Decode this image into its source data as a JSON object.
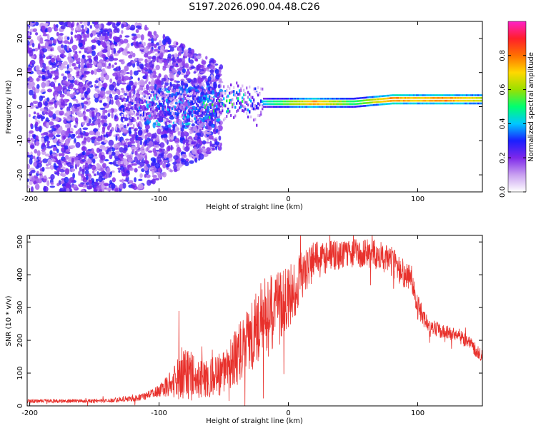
{
  "title": "S197.2026.090.04.48.C26",
  "colors": {
    "snr_line": "#e8312c",
    "colormap": [
      "#ffffff",
      "#c9a0f0",
      "#7e28ea",
      "#1a1fff",
      "#00c8ff",
      "#00ff70",
      "#9ae000",
      "#ffd800",
      "#ff7000",
      "#ff1f2a",
      "#ff20c8"
    ]
  },
  "chart_data": [
    {
      "type": "heatmap",
      "title": "S197.2026.090.04.48.C26",
      "xlabel": "Height of straight line (km)",
      "ylabel": "Frequency (Hz)",
      "xlim": [
        -202,
        150
      ],
      "ylim": [
        -25,
        25
      ],
      "xticks": [
        -200,
        -100,
        0,
        100
      ],
      "xtick_labels": [
        "-200",
        "-100",
        "0",
        "100"
      ],
      "yticks": [
        -20,
        -10,
        0,
        10,
        20
      ],
      "ytick_labels": [
        "-20",
        "-10",
        "0",
        "10",
        "20"
      ],
      "colorbar": {
        "label": "Normalized spectral amplitude",
        "range": [
          0,
          1
        ],
        "ticks": [
          0.0,
          0.2,
          0.4,
          0.6,
          0.8
        ],
        "tick_labels": [
          "0.0",
          "0.2",
          "0.4",
          "0.6",
          "0.8"
        ]
      },
      "description_points": {
        "x": [
          -200,
          -150,
          -120,
          -100,
          -80,
          -60,
          -40,
          -30,
          -20,
          0,
          20,
          50,
          80,
          100,
          120,
          150
        ],
        "dominant_freq_hz": [
          0,
          0,
          0,
          0,
          0,
          0,
          2,
          1,
          1,
          1,
          1,
          1,
          2,
          2,
          2,
          2
        ],
        "peak_amplitude": [
          0.25,
          0.3,
          0.35,
          0.45,
          0.45,
          0.55,
          0.55,
          0.55,
          0.5,
          0.7,
          0.9,
          0.6,
          0.95,
          0.85,
          0.95,
          0.75
        ]
      }
    },
    {
      "type": "line",
      "xlabel": "Height of straight line (km)",
      "ylabel": "SNR (10 * v/v)",
      "xlim": [
        -202,
        150
      ],
      "ylim": [
        0,
        520
      ],
      "xticks": [
        -200,
        -100,
        0,
        100
      ],
      "xtick_labels": [
        "-200",
        "-100",
        "0",
        "100"
      ],
      "yticks": [
        0,
        100,
        200,
        300,
        400,
        500
      ],
      "ytick_labels": [
        "0",
        "100",
        "200",
        "300",
        "400",
        "500"
      ],
      "series": [
        {
          "name": "SNR",
          "x": [
            -202,
            -180,
            -160,
            -140,
            -120,
            -110,
            -100,
            -90,
            -85,
            -80,
            -70,
            -60,
            -50,
            -40,
            -30,
            -20,
            -15,
            -10,
            -5,
            0,
            5,
            10,
            20,
            30,
            40,
            50,
            60,
            70,
            80,
            85,
            90,
            95,
            100,
            105,
            110,
            120,
            130,
            140,
            150
          ],
          "y": [
            15,
            15,
            15,
            16,
            22,
            30,
            45,
            70,
            90,
            100,
            80,
            85,
            100,
            150,
            200,
            260,
            270,
            290,
            300,
            330,
            360,
            400,
            440,
            455,
            460,
            465,
            465,
            460,
            440,
            420,
            400,
            390,
            300,
            260,
            240,
            225,
            220,
            190,
            150
          ],
          "spread": [
            6,
            6,
            6,
            7,
            9,
            12,
            18,
            40,
            80,
            90,
            60,
            60,
            70,
            90,
            110,
            130,
            130,
            120,
            110,
            100,
            90,
            75,
            60,
            50,
            45,
            45,
            45,
            45,
            45,
            45,
            45,
            45,
            40,
            30,
            25,
            22,
            22,
            22,
            20
          ]
        }
      ]
    }
  ]
}
